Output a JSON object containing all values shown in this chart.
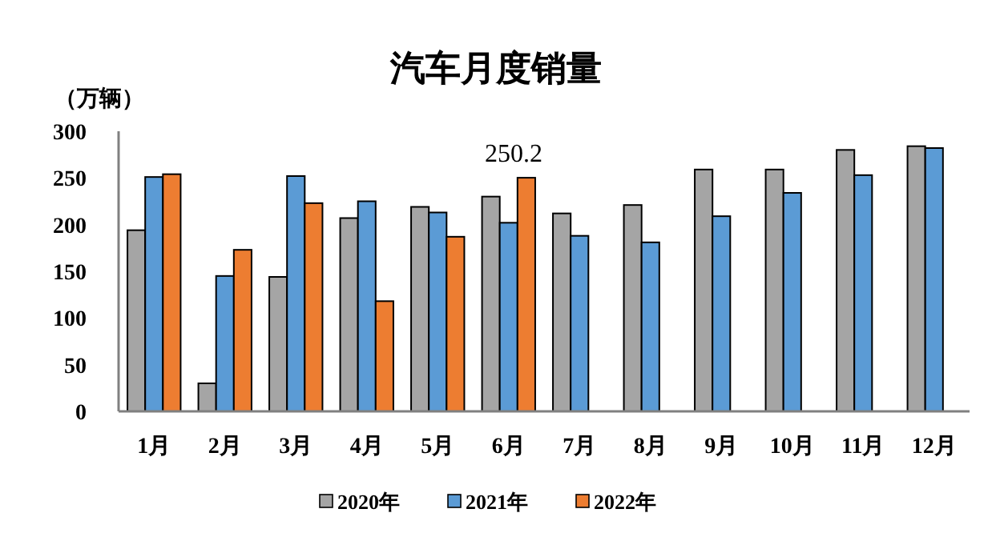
{
  "chart_data": {
    "type": "bar",
    "title": "汽车月度销量",
    "ylabel": "（万辆）",
    "categories": [
      "1月",
      "2月",
      "3月",
      "4月",
      "5月",
      "6月",
      "7月",
      "8月",
      "9月",
      "10月",
      "11月",
      "12月"
    ],
    "series": [
      {
        "name": "2020年",
        "color": "#a5a5a5",
        "values": [
          194,
          30,
          144,
          207,
          219,
          230,
          212,
          221,
          259,
          259,
          280,
          284
        ]
      },
      {
        "name": "2021年",
        "color": "#5b9bd5",
        "values": [
          251,
          145,
          252,
          225,
          213,
          202,
          188,
          181,
          209,
          234,
          253,
          282
        ]
      },
      {
        "name": "2022年",
        "color": "#ed7d31",
        "values": [
          254,
          173,
          223,
          118,
          187,
          250.2,
          null,
          null,
          null,
          null,
          null,
          null
        ],
        "value_labels": [
          null,
          null,
          null,
          null,
          null,
          "250.2",
          null,
          null,
          null,
          null,
          null,
          null
        ]
      }
    ],
    "ylim": [
      0,
      300
    ],
    "yticks": [
      0,
      50,
      100,
      150,
      200,
      250,
      300
    ],
    "legend": "bottom",
    "grid": false
  }
}
